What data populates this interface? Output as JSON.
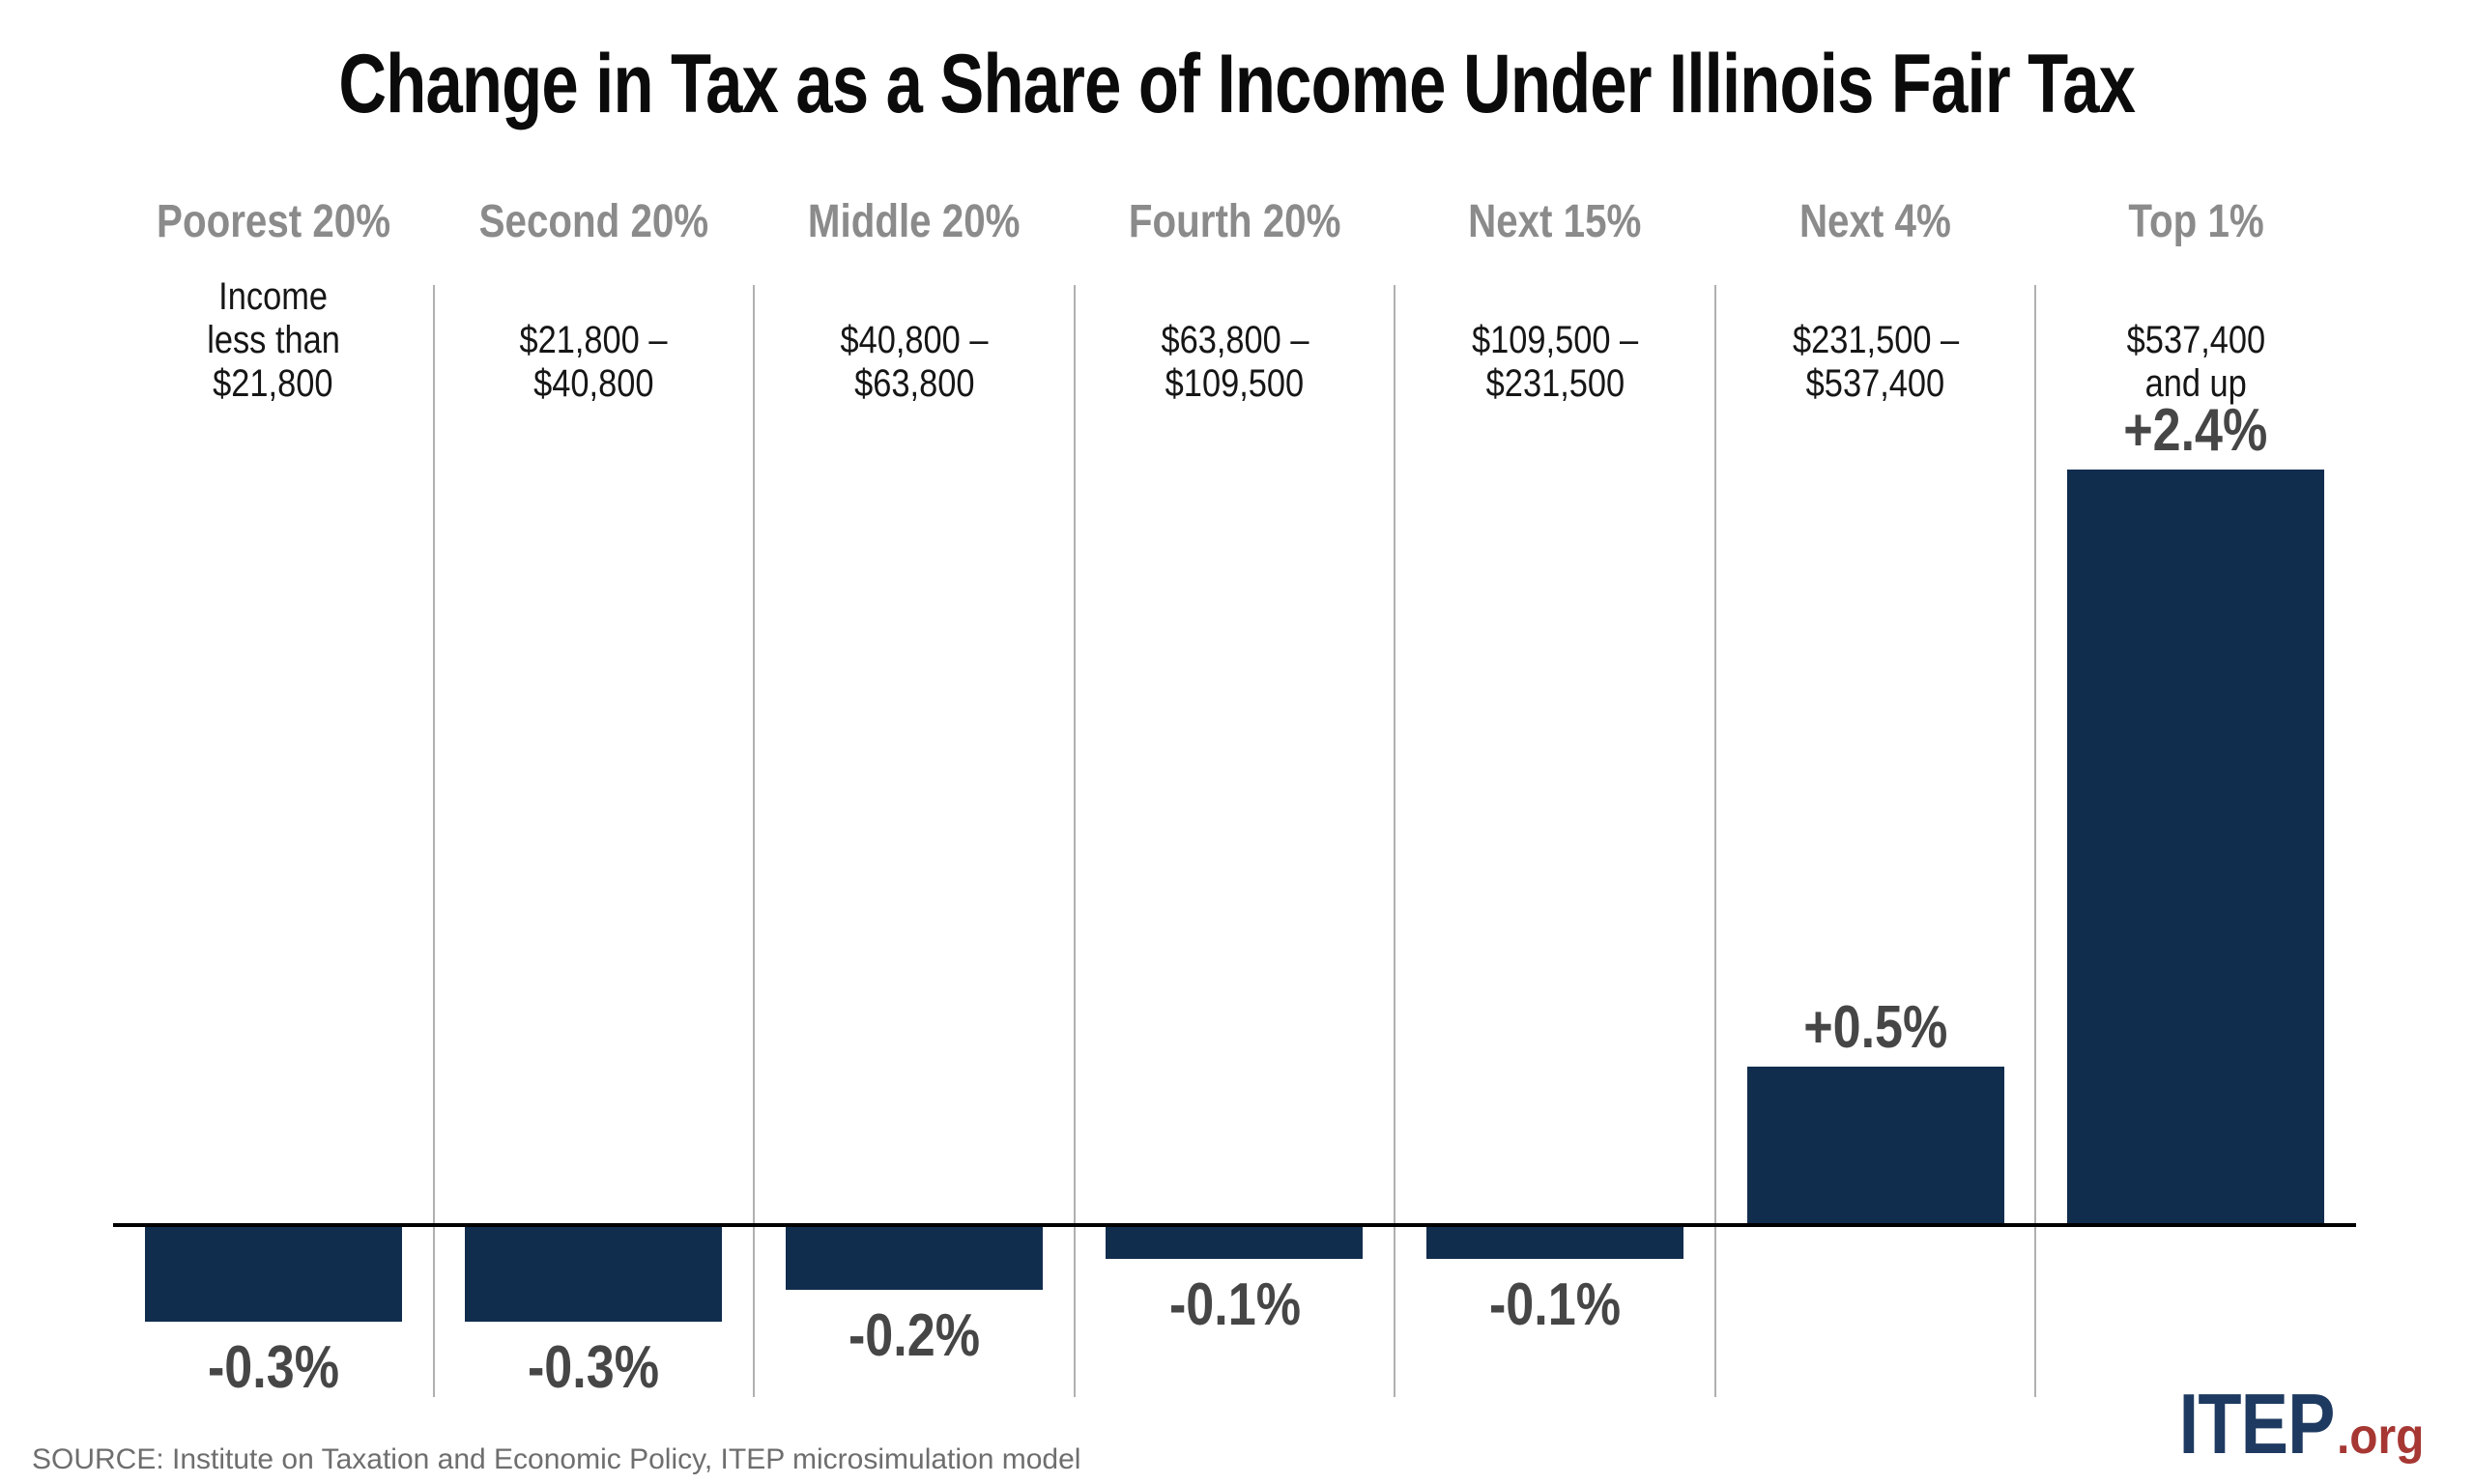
{
  "title": "Change in Tax as a Share of Income Under Illinois Fair Tax",
  "source_note": "SOURCE: Institute on Taxation and Economic Policy, ITEP microsimulation model",
  "logo": {
    "name": "ITEP",
    "suffix": ".org"
  },
  "colors": {
    "bar": "#112d4e",
    "axis": "#000000",
    "divider": "#b0b0b0",
    "category_label": "#8b8b8b",
    "income_text": "#161616",
    "value_label": "#464646",
    "source_text": "#6e6e6e",
    "logo_navy": "#1e3a60",
    "logo_red": "#a63733"
  },
  "chart_data": {
    "type": "bar",
    "title": "Change in Tax as a Share of Income Under Illinois Fair Tax",
    "categories": [
      "Poorest 20%",
      "Second 20%",
      "Middle 20%",
      "Fourth 20%",
      "Next 15%",
      "Next 4%",
      "Top 1%"
    ],
    "income_ranges": [
      [
        "Income",
        "less than",
        "$21,800"
      ],
      [
        "$21,800 –",
        "$40,800"
      ],
      [
        "$40,800 –",
        "$63,800"
      ],
      [
        "$63,800 –",
        "$109,500"
      ],
      [
        "$109,500 –",
        "$231,500"
      ],
      [
        "$231,500 –",
        "$537,400"
      ],
      [
        "$537,400",
        "and up"
      ]
    ],
    "values": [
      -0.3,
      -0.3,
      -0.2,
      -0.1,
      -0.1,
      0.5,
      2.4
    ],
    "value_labels": [
      "-0.3%",
      "-0.3%",
      "-0.2%",
      "-0.1%",
      "-0.1%",
      "+0.5%",
      "+2.4%"
    ],
    "ylabel": "",
    "xlabel": "",
    "ylim": [
      -0.4,
      2.6
    ],
    "baseline": 0,
    "grid": "vertical column dividers only",
    "legend": "none"
  }
}
